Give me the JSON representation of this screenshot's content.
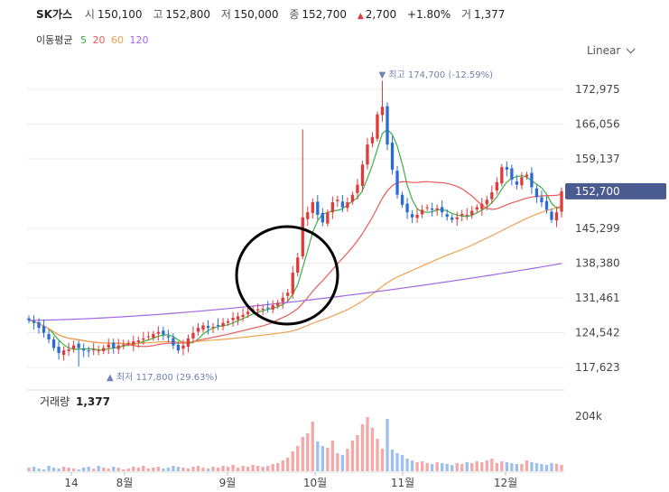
{
  "header": {
    "name": "SK가스",
    "open_label": "시",
    "open": "150,100",
    "high_label": "고",
    "high": "152,800",
    "low_label": "저",
    "low": "150,000",
    "close_label": "종",
    "close": "152,700",
    "change_arrow": "▲",
    "change": "2,700",
    "change_pct": "+1.80%",
    "volume_label": "거",
    "volume": "1,377"
  },
  "ma_legend": {
    "label": "이동평균",
    "periods": [
      "5",
      "20",
      "60",
      "120"
    ],
    "colors": [
      "#3cb043",
      "#e85a5a",
      "#f0a050",
      "#a267e0"
    ]
  },
  "scale_button": {
    "label": "Linear",
    "icon": "chevron-down-icon"
  },
  "volume_panel": {
    "label": "거래량",
    "value": "1,377",
    "tick": "204k"
  },
  "colors": {
    "up": "#e03a3a",
    "down": "#2a6cd6",
    "price_tag": "#4a5c8f",
    "annotation": "#6f82b0"
  },
  "chart_data": {
    "type": "candlestick",
    "y_ticks": [
      117623,
      124542,
      131461,
      138380,
      145299,
      152700,
      159137,
      166056,
      172975
    ],
    "y_tick_labels": [
      "117,623",
      "124,542",
      "131,461",
      "138,380",
      "145,299",
      "152,700",
      "159,137",
      "166,056",
      "172,975"
    ],
    "x_tick_labels": [
      "14",
      "8월",
      "9월",
      "10월",
      "11월",
      "12월"
    ],
    "current_price": 152700,
    "current_price_label": "152,700",
    "high_marker": {
      "text": "최고 174,700 (-12.59%)",
      "arrow": "▼",
      "value": 174700
    },
    "low_marker": {
      "text": "최저 117,800 (29.63%)",
      "arrow": "▲",
      "value": 117800
    },
    "close_series": [
      127000,
      126500,
      125500,
      124500,
      123200,
      121500,
      120500,
      121000,
      121200,
      122000,
      121500,
      121000,
      120800,
      121200,
      121000,
      121500,
      122200,
      121500,
      122000,
      122200,
      122500,
      122800,
      123000,
      123400,
      123800,
      124300,
      124700,
      124200,
      123600,
      122000,
      121000,
      122000,
      123400,
      124500,
      125500,
      126000,
      125500,
      125700,
      126000,
      126500,
      126800,
      127500,
      127800,
      128100,
      128700,
      129200,
      129200,
      129300,
      129500,
      130000,
      130500,
      131500,
      132500,
      136500,
      139500,
      147500,
      148500,
      150500,
      148000,
      146500,
      148500,
      150500,
      151000,
      149500,
      150500,
      152000,
      154000,
      158000,
      162000,
      163500,
      168000,
      169500,
      162000,
      157000,
      152000,
      150000,
      148500,
      147500,
      148000,
      149000,
      149500,
      149000,
      149300,
      148500,
      147600,
      147000,
      147500,
      148200,
      148000,
      148800,
      149500,
      150200,
      151000,
      152500,
      154500,
      157500,
      157000,
      155000,
      154000,
      155500,
      156000,
      153500,
      151500,
      150500,
      149000,
      147000,
      148500,
      152700
    ],
    "volume_series": [
      4,
      5,
      3,
      2,
      6,
      4,
      3,
      5,
      4,
      3,
      2,
      4,
      5,
      3,
      6,
      4,
      3,
      5,
      4,
      2,
      3,
      5,
      4,
      6,
      3,
      4,
      5,
      3,
      4,
      6,
      5,
      4,
      3,
      5,
      6,
      4,
      3,
      5,
      4,
      6,
      5,
      7,
      4,
      6,
      5,
      7,
      6,
      5,
      6,
      8,
      9,
      12,
      15,
      22,
      28,
      38,
      42,
      55,
      33,
      28,
      26,
      34,
      20,
      18,
      25,
      34,
      40,
      52,
      60,
      48,
      36,
      25,
      58,
      24,
      20,
      18,
      14,
      12,
      10,
      11,
      9,
      8,
      10,
      9,
      8,
      7,
      9,
      8,
      10,
      9,
      11,
      10,
      12,
      14,
      9,
      11,
      10,
      9,
      8,
      8,
      12,
      10,
      9,
      8,
      7,
      9,
      8,
      7
    ],
    "ma_series": [
      {
        "name": "5",
        "period": 5
      },
      {
        "name": "20",
        "period": 20
      },
      {
        "name": "60",
        "period": 60
      },
      {
        "name": "120",
        "period": 120
      }
    ]
  }
}
